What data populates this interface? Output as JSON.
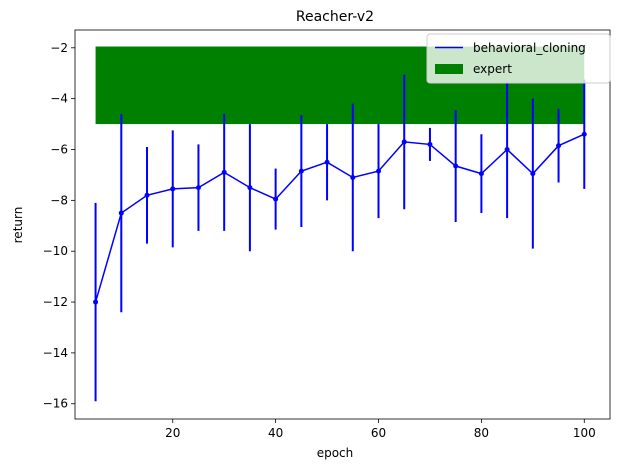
{
  "chart_data": {
    "type": "line",
    "title": "Reacher-v2",
    "xlabel": "epoch",
    "ylabel": "return",
    "xlim": [
      1,
      105
    ],
    "ylim": [
      -16.6,
      -1.3
    ],
    "xticks": [
      20,
      40,
      60,
      80,
      100
    ],
    "yticks": [
      -2,
      -4,
      -6,
      -8,
      -10,
      -12,
      -14,
      -16
    ],
    "xtick_labels": [
      "20",
      "40",
      "60",
      "80",
      "100"
    ],
    "ytick_labels": [
      "−2",
      "−4",
      "−6",
      "−8",
      "−10",
      "−12",
      "−14",
      "−16"
    ],
    "legend_position": "top-right",
    "series": [
      {
        "name": "behavioral_cloning",
        "color": "#0000ff",
        "x": [
          5,
          10,
          15,
          20,
          25,
          30,
          35,
          40,
          45,
          50,
          55,
          60,
          65,
          70,
          75,
          80,
          85,
          90,
          95,
          100
        ],
        "y": [
          -12.0,
          -8.5,
          -7.8,
          -7.55,
          -7.5,
          -6.9,
          -7.5,
          -7.95,
          -6.85,
          -6.5,
          -7.1,
          -6.85,
          -5.7,
          -5.8,
          -6.65,
          -6.95,
          -6.0,
          -6.95,
          -5.85,
          -5.4
        ],
        "err": [
          3.9,
          3.9,
          1.9,
          2.3,
          1.7,
          2.3,
          2.5,
          1.2,
          2.2,
          1.5,
          2.9,
          1.85,
          2.65,
          0.65,
          2.2,
          1.55,
          2.7,
          2.95,
          1.45,
          2.15
        ]
      }
    ],
    "band": {
      "name": "expert",
      "color": "#008000",
      "x": [
        5,
        100
      ],
      "y_low": -5.0,
      "y_high": -1.95
    }
  }
}
